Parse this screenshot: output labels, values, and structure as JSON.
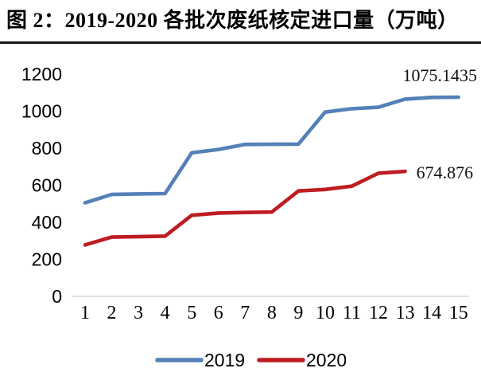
{
  "figure": {
    "title": "图 2：2019-2020 各批次废纸核定进口量（万吨）"
  },
  "chart_data": {
    "type": "line",
    "title": "图 2：2019-2020 各批次废纸核定进口量（万吨）",
    "x": [
      1,
      2,
      3,
      4,
      5,
      6,
      7,
      8,
      9,
      10,
      11,
      12,
      13,
      14,
      15
    ],
    "xlabel": "",
    "ylabel": "",
    "ylim": [
      0,
      1200
    ],
    "yticks": [
      0,
      200,
      400,
      600,
      800,
      1000,
      1200
    ],
    "grid": false,
    "legend_position": "bottom",
    "series": [
      {
        "name": "2019",
        "color": "#5580B8",
        "values": [
          505,
          550,
          553,
          555,
          775,
          793,
          820,
          821,
          822,
          995,
          1013,
          1021,
          1065,
          1074,
          1075.1435
        ],
        "end_label": "1075.1435"
      },
      {
        "name": "2020",
        "color": "#BE1D22",
        "values": [
          278,
          320,
          322,
          325,
          438,
          450,
          453,
          455,
          569,
          577,
          595,
          665,
          674.876
        ],
        "end_label": "674.876"
      }
    ],
    "annotations": [
      "1075.1435",
      "674.876"
    ]
  },
  "colors": {
    "axis_line": "#D9D9D9",
    "text": "#000000",
    "background": "#FFFFFF"
  }
}
